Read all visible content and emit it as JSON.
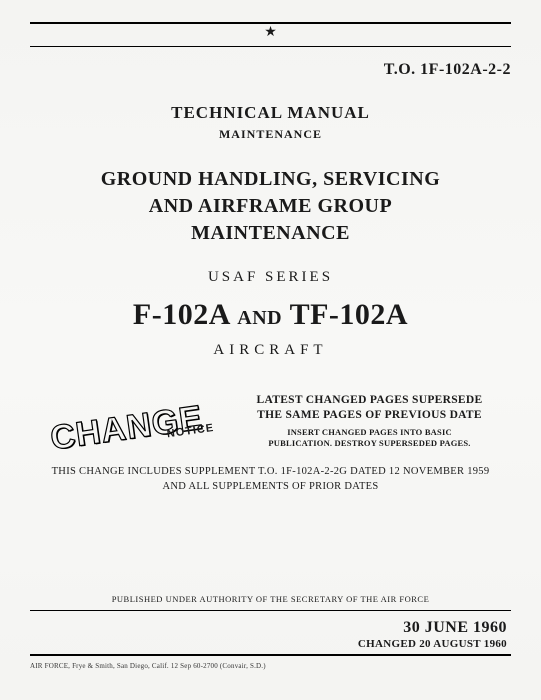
{
  "to_number": "T.O. 1F-102A-2-2",
  "star_glyph": "★",
  "tech_title": "TECHNICAL MANUAL",
  "maint_sub": "MAINTENANCE",
  "ground_title_l1": "GROUND HANDLING, SERVICING",
  "ground_title_l2": "AND AIRFRAME GROUP",
  "ground_title_l3": "MAINTENANCE",
  "usaf_series": "USAF SERIES",
  "model_a": "F-102A",
  "model_and": "AND",
  "model_b": "TF-102A",
  "aircraft": "AIRCRAFT",
  "change_word": "CHANGE",
  "notice_word": "NOTICE",
  "supersede_l1": "LATEST CHANGED PAGES SUPERSEDE",
  "supersede_l2": "THE SAME PAGES OF PREVIOUS DATE",
  "supersede_sub_l1": "INSERT CHANGED PAGES INTO BASIC",
  "supersede_sub_l2": "PUBLICATION. DESTROY SUPERSEDED PAGES.",
  "change_includes_l1": "THIS CHANGE INCLUDES SUPPLEMENT T.O. 1F-102A-2-2G DATED 12 NOVEMBER 1959",
  "change_includes_l2": "AND ALL SUPPLEMENTS OF PRIOR DATES",
  "authority": "PUBLISHED UNDER AUTHORITY OF THE SECRETARY OF THE AIR FORCE",
  "date_main": "30 JUNE 1960",
  "date_changed": "CHANGED 20 AUGUST 1960",
  "fineprint": "AIR FORCE, Frye & Smith, San Diego, Calif. 12 Sep 60-2700 (Convair, S.D.)",
  "colors": {
    "page_bg": "#f5f5f3",
    "ink": "#1a1a1a",
    "outline_fill": "#f5f5f3"
  }
}
